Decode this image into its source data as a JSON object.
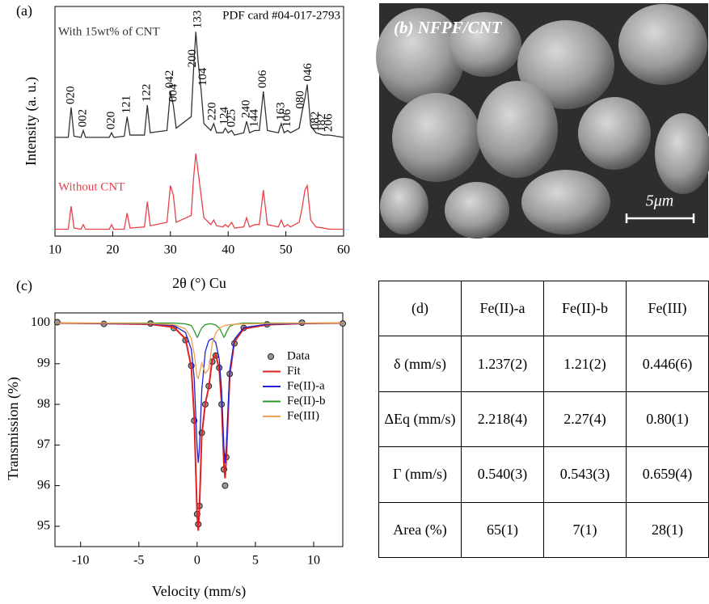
{
  "chart_data": [
    {
      "type": "line",
      "panel_label": "(a)",
      "annotation": "PDF card #04-017-2793",
      "xlabel": "2θ (°) Cu",
      "ylabel": "Intensity (a. u.)",
      "x": [
        10,
        12.3,
        12.8,
        13.3,
        14.5,
        14.9,
        15.3,
        19.4,
        19.8,
        20.2,
        22.0,
        22.5,
        23.0,
        25.5,
        26.0,
        26.5,
        29.4,
        30.0,
        30.5,
        31.0,
        33.6,
        34.0,
        34.4,
        34.8,
        35.3,
        35.8,
        37.0,
        37.5,
        38.0,
        39.1,
        39.5,
        40.0,
        40.6,
        41.1,
        42.7,
        43.2,
        43.7,
        44.6,
        45.4,
        46.1,
        46.8,
        48.7,
        49.2,
        49.7,
        50.3,
        50.8,
        52.3,
        52.8,
        53.3,
        53.7,
        54.3,
        55.2,
        56.5,
        57.5,
        60
      ],
      "series": [
        {
          "name": "With 15wt% of CNT",
          "color": "#333333",
          "mode": "lines",
          "values": [
            43,
            43,
            56,
            43.5,
            43,
            46,
            43,
            43,
            45,
            43,
            43.5,
            52,
            44,
            44,
            57,
            45,
            46,
            63,
            57,
            47,
            52,
            72,
            89,
            76,
            64,
            49,
            46,
            49,
            45,
            45,
            47,
            45,
            46,
            44,
            45,
            50,
            45,
            46,
            46,
            63,
            46,
            45,
            49,
            45,
            46,
            45,
            47,
            54,
            60,
            66,
            48,
            45,
            44,
            44,
            43
          ]
        },
        {
          "name": "Without CNT",
          "color": "#e8414a",
          "mode": "lines",
          "values": [
            3,
            3,
            13,
            3.5,
            3,
            5,
            3,
            3,
            5,
            3,
            3,
            10,
            3.5,
            4,
            15,
            4.5,
            6,
            22,
            18,
            6,
            9,
            25,
            36,
            28,
            18,
            8,
            5,
            7,
            4.5,
            4,
            5,
            4,
            6,
            3.5,
            4,
            8,
            4,
            5,
            5,
            20,
            5,
            4,
            7,
            4,
            5,
            4,
            6,
            12,
            20,
            22,
            7,
            4,
            3.5,
            3,
            3
          ]
        }
      ],
      "xlim": [
        10,
        60
      ],
      "xticks": [
        10,
        20,
        30,
        40,
        50,
        60
      ],
      "ylim": [
        0,
        100
      ],
      "peak_labels": [
        {
          "label": "020",
          "x": 12.8
        },
        {
          "label": "002",
          "x": 14.9
        },
        {
          "label": "020",
          "x": 19.8
        },
        {
          "label": "121",
          "x": 22.5
        },
        {
          "label": "122",
          "x": 26.0
        },
        {
          "label": "042",
          "x": 30.0
        },
        {
          "label": "004",
          "x": 30.6
        },
        {
          "label": "200",
          "x": 33.9
        },
        {
          "label": "133",
          "x": 34.8
        },
        {
          "label": "104",
          "x": 35.7
        },
        {
          "label": "220",
          "x": 37.3
        },
        {
          "label": "124",
          "x": 39.4
        },
        {
          "label": "025",
          "x": 40.7
        },
        {
          "label": "240",
          "x": 43.2
        },
        {
          "label": "144",
          "x": 44.6
        },
        {
          "label": "006",
          "x": 46.1
        },
        {
          "label": "163",
          "x": 49.2
        },
        {
          "label": "106",
          "x": 50.3
        },
        {
          "label": "080",
          "x": 52.6
        },
        {
          "label": "046",
          "x": 53.9
        },
        {
          "label": "082",
          "x": 55.2
        },
        {
          "label": "182",
          "x": 56.3
        },
        {
          "label": "206",
          "x": 57.5
        }
      ]
    },
    {
      "type": "line",
      "panel_label": "(c)",
      "xlabel": "Velocity (mm/s)",
      "ylabel": "Transmission (%)",
      "x": [
        -12,
        -8,
        -4,
        -2,
        -1,
        -0.5,
        -0.25,
        0,
        0.1,
        0.2,
        0.4,
        0.7,
        1.0,
        1.3,
        1.6,
        1.9,
        2.1,
        2.3,
        2.4,
        2.5,
        2.8,
        3.2,
        4,
        6,
        9,
        12.5
      ],
      "series": [
        {
          "name": "Data",
          "color": "#222222",
          "mode": "markers",
          "values": [
            100.02,
            99.98,
            99.99,
            99.88,
            99.58,
            98.95,
            97.6,
            95.3,
            95.05,
            95.5,
            97.3,
            98.0,
            98.45,
            99.05,
            99.2,
            98.9,
            98.0,
            96.4,
            96.0,
            96.7,
            98.75,
            99.5,
            99.88,
            99.97,
            100.01,
            99.99
          ]
        },
        {
          "name": "Fit",
          "color": "#e02020",
          "mode": "lines",
          "values": [
            100,
            99.99,
            99.97,
            99.9,
            99.61,
            98.92,
            97.69,
            95.27,
            94.89,
            95.47,
            97.25,
            98.02,
            98.42,
            99.1,
            99.23,
            98.85,
            98.02,
            96.52,
            96.18,
            96.67,
            98.72,
            99.54,
            99.86,
            99.96,
            99.99,
            100
          ]
        },
        {
          "name": "Fe(II)-a",
          "color": "#2020d0",
          "mode": "lines",
          "values": [
            100,
            99.99,
            99.98,
            99.94,
            99.77,
            99.36,
            98.64,
            96.95,
            96.56,
            96.94,
            98.35,
            99.3,
            99.57,
            99.62,
            99.52,
            99.11,
            98.35,
            96.94,
            96.55,
            96.95,
            98.84,
            99.6,
            99.89,
            99.97,
            99.99,
            100
          ]
        },
        {
          "name": "Fe(II)-b",
          "color": "#2a9a2a",
          "mode": "lines",
          "values": [
            100,
            100,
            100,
            100,
            99.98,
            99.94,
            99.81,
            99.65,
            99.69,
            99.77,
            99.88,
            99.96,
            99.98,
            99.98,
            99.95,
            99.88,
            99.77,
            99.65,
            99.69,
            99.77,
            99.92,
            99.97,
            100,
            100,
            100,
            100
          ]
        },
        {
          "name": "Fe(III)",
          "color": "#f0a050",
          "mode": "lines",
          "values": [
            100,
            100,
            99.99,
            99.96,
            99.86,
            99.62,
            99.24,
            98.67,
            98.64,
            98.76,
            99.02,
            98.76,
            98.87,
            99.5,
            99.76,
            99.86,
            99.9,
            99.93,
            99.94,
            99.95,
            99.96,
            99.97,
            99.98,
            99.99,
            100,
            100
          ]
        }
      ],
      "xlim": [
        -12.2,
        12.5
      ],
      "xticks": [
        -10,
        -5,
        0,
        5,
        10
      ],
      "ylim": [
        94.5,
        100.25
      ],
      "yticks": [
        95,
        96,
        97,
        98,
        99,
        100
      ],
      "legend": "right"
    }
  ],
  "image": {
    "label": "(b) NFPF/CNT",
    "scale_bar": "5μm"
  },
  "table": {
    "rows": [
      [
        "(d)",
        "Fe(II)-a",
        "Fe(II)-b",
        "Fe(III)"
      ],
      [
        "δ (mm/s)",
        "1.237(2)",
        "1.21(2)",
        "0.446(6)"
      ],
      [
        "ΔEq (mm/s)",
        "2.218(4)",
        "2.27(4)",
        "0.80(1)"
      ],
      [
        "Γ (mm/s)",
        "0.540(3)",
        "0.543(3)",
        "0.659(4)"
      ],
      [
        "Area (%)",
        "65(1)",
        "7(1)",
        "28(1)"
      ]
    ]
  }
}
